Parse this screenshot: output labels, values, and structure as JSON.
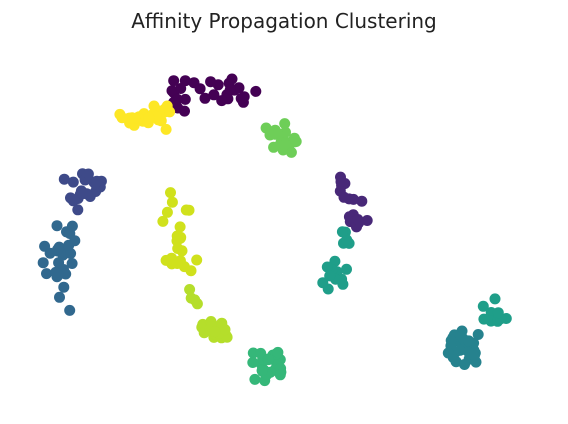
{
  "chart_data": {
    "type": "scatter",
    "title": "Affinity Propagation Clustering",
    "xlabel": "",
    "ylabel": "",
    "axes_visible": false,
    "grid": false,
    "legend": "none",
    "xlim": [
      -1.2,
      2.2
    ],
    "ylim": [
      -0.65,
      1.2
    ],
    "colormap": "viridis",
    "clusters": [
      {
        "id": 0,
        "color": "#440154",
        "points": [
          [
            -0.079,
            1.032
          ],
          [
            0.16,
            1.051
          ],
          [
            0.31,
            0.987
          ],
          [
            -0.208,
            0.93
          ],
          [
            -0.134,
            1.042
          ],
          [
            -0.207,
            0.981
          ],
          [
            -0.218,
            0.991
          ],
          [
            0.073,
            1.021
          ],
          [
            0.142,
            1.03
          ],
          [
            0.204,
            1.006
          ],
          [
            0.128,
            0.971
          ],
          [
            -0.041,
            1.001
          ],
          [
            -0.134,
            0.946
          ],
          [
            -0.181,
            0.902
          ],
          [
            -0.183,
            0.946
          ],
          [
            -0.163,
            1.002
          ],
          [
            0.134,
            0.949
          ],
          [
            0.046,
            0.97
          ],
          [
            0.175,
            0.994
          ],
          [
            0.025,
            1.037
          ],
          [
            0.232,
            0.931
          ],
          [
            -0.139,
            0.886
          ],
          [
            0.218,
            0.951
          ],
          [
            0.149,
            0.997
          ],
          [
            -0.207,
            1.042
          ],
          [
            0.095,
            0.94
          ],
          [
            -0.01,
            0.952
          ],
          [
            0.237,
            0.96
          ]
        ]
      },
      {
        "id": 1,
        "color": "#482878",
        "points": [
          [
            0.871,
            0.514
          ],
          [
            0.897,
            0.435
          ],
          [
            0.977,
            0.423
          ],
          [
            0.843,
            0.547
          ],
          [
            0.944,
            0.291
          ],
          [
            1.011,
            0.324
          ],
          [
            0.925,
            0.432
          ],
          [
            0.842,
            0.475
          ],
          [
            0.924,
            0.353
          ],
          [
            0.85,
            0.503
          ],
          [
            0.846,
            0.523
          ],
          [
            0.899,
            0.343
          ],
          [
            0.958,
            0.312
          ],
          [
            0.865,
            0.443
          ],
          [
            0.905,
            0.318
          ],
          [
            0.953,
            0.329
          ]
        ]
      },
      {
        "id": 2,
        "color": "#3e4a89",
        "points": [
          [
            -0.796,
            0.457
          ],
          [
            -0.71,
            0.521
          ],
          [
            -0.781,
            0.564
          ],
          [
            -0.733,
            0.447
          ],
          [
            -0.765,
            0.532
          ],
          [
            -0.699,
            0.473
          ],
          [
            -0.755,
            0.461
          ],
          [
            -0.744,
            0.563
          ],
          [
            -0.896,
            0.536
          ],
          [
            -0.788,
            0.476
          ],
          [
            -0.662,
            0.526
          ],
          [
            -0.839,
            0.425
          ],
          [
            -0.811,
            0.379
          ],
          [
            -0.839,
            0.521
          ],
          [
            -0.669,
            0.496
          ],
          [
            -0.701,
            0.512
          ],
          [
            -0.691,
            0.526
          ],
          [
            -0.857,
            0.44
          ],
          [
            -0.809,
            0.437
          ],
          [
            -0.781,
            0.462
          ]
        ]
      },
      {
        "id": 3,
        "color": "#31688e",
        "points": [
          [
            -0.901,
            0.157
          ],
          [
            -1.008,
            0.051
          ],
          [
            -0.932,
            0.107
          ],
          [
            -0.862,
            -0.138
          ],
          [
            -0.942,
            0.035
          ],
          [
            -0.901,
            0.072
          ],
          [
            -0.882,
            0.266
          ],
          [
            -0.939,
            0.167
          ],
          [
            -0.905,
            0.146
          ],
          [
            -0.861,
            0.257
          ],
          [
            -0.887,
            0.049
          ],
          [
            -0.847,
            0.103
          ],
          [
            -0.928,
            0.187
          ],
          [
            -0.856,
            0.154
          ],
          [
            -0.899,
            -0.019
          ],
          [
            -0.926,
            -0.071
          ],
          [
            -0.935,
            0.042
          ],
          [
            -0.985,
            0.156
          ],
          [
            -0.868,
            0.197
          ],
          [
            -0.83,
            0.22
          ],
          [
            -0.845,
            0.295
          ],
          [
            -0.95,
            0.057
          ],
          [
            -1.029,
            0.107
          ],
          [
            -0.938,
            0.175
          ],
          [
            -1.02,
            0.191
          ],
          [
            -0.942,
            0.297
          ]
        ]
      },
      {
        "id": 4,
        "color": "#26828e",
        "points": [
          [
            1.63,
            -0.304
          ],
          [
            1.551,
            -0.278
          ],
          [
            1.637,
            -0.336
          ],
          [
            1.629,
            -0.333
          ],
          [
            1.692,
            -0.357
          ],
          [
            1.608,
            -0.244
          ],
          [
            1.553,
            -0.38
          ],
          [
            1.653,
            -0.389
          ],
          [
            1.586,
            -0.296
          ],
          [
            1.571,
            -0.402
          ],
          [
            1.614,
            -0.282
          ],
          [
            1.624,
            -0.416
          ],
          [
            1.683,
            -0.343
          ],
          [
            1.71,
            -0.262
          ],
          [
            1.567,
            -0.353
          ],
          [
            1.61,
            -0.339
          ],
          [
            1.538,
            -0.32
          ],
          [
            1.681,
            -0.306
          ],
          [
            1.56,
            -0.264
          ],
          [
            1.595,
            -0.343
          ],
          [
            1.651,
            -0.295
          ],
          [
            1.696,
            -0.404
          ],
          [
            1.651,
            -0.354
          ],
          [
            1.54,
            -0.293
          ],
          [
            1.522,
            -0.357
          ],
          [
            1.686,
            -0.372
          ]
        ]
      },
      {
        "id": 5,
        "color": "#1f9e89",
        "points": [
          [
            0.874,
            0.264
          ],
          [
            0.862,
            0.207
          ],
          [
            0.897,
            0.206
          ],
          [
            0.798,
            0.058
          ],
          [
            0.85,
            0.022
          ],
          [
            0.822,
            0.06
          ],
          [
            0.766,
            -0.028
          ],
          [
            0.882,
            0.224
          ],
          [
            0.808,
            0.114
          ],
          [
            0.881,
            0.073
          ],
          [
            0.858,
            -0.004
          ],
          [
            0.79,
            0.071
          ],
          [
            0.76,
            0.085
          ],
          [
            0.812,
            0.022
          ],
          [
            0.732,
            0.004
          ],
          [
            0.855,
            0.266
          ],
          [
            0.775,
            0.039
          ],
          [
            1.742,
            -0.117
          ],
          [
            1.816,
            -0.079
          ],
          [
            1.887,
            -0.18
          ],
          [
            1.792,
            -0.149
          ],
          [
            1.791,
            -0.193
          ],
          [
            1.832,
            -0.194
          ],
          [
            1.852,
            -0.181
          ],
          [
            1.746,
            -0.183
          ],
          [
            1.837,
            -0.15
          ]
        ]
      },
      {
        "id": 6,
        "color": "#35b779",
        "points": [
          [
            0.304,
            -0.493
          ],
          [
            0.417,
            -0.368
          ],
          [
            0.38,
            -0.389
          ],
          [
            0.359,
            -0.443
          ],
          [
            0.294,
            -0.357
          ],
          [
            0.447,
            -0.387
          ],
          [
            0.428,
            -0.446
          ],
          [
            0.345,
            -0.415
          ],
          [
            0.468,
            -0.455
          ],
          [
            0.353,
            -0.452
          ],
          [
            0.353,
            -0.39
          ],
          [
            0.464,
            -0.391
          ],
          [
            0.366,
            -0.499
          ],
          [
            0.341,
            -0.359
          ],
          [
            0.388,
            -0.389
          ],
          [
            0.442,
            -0.418
          ],
          [
            0.439,
            -0.361
          ],
          [
            0.35,
            -0.446
          ],
          [
            0.402,
            -0.456
          ],
          [
            0.381,
            -0.467
          ],
          [
            0.466,
            -0.436
          ],
          [
            0.464,
            -0.469
          ],
          [
            0.291,
            -0.406
          ],
          [
            0.449,
            -0.354
          ],
          [
            0.39,
            -0.391
          ],
          [
            0.35,
            -0.448
          ]
        ]
      },
      {
        "id": 7,
        "color": "#6ece58",
        "points": [
          [
            0.375,
            0.799
          ],
          [
            0.488,
            0.737
          ],
          [
            0.517,
            0.707
          ],
          [
            0.432,
            0.788
          ],
          [
            0.555,
            0.728
          ],
          [
            0.461,
            0.768
          ],
          [
            0.482,
            0.686
          ],
          [
            0.492,
            0.822
          ],
          [
            0.468,
            0.724
          ],
          [
            0.553,
            0.747
          ],
          [
            0.564,
            0.73
          ],
          [
            0.422,
            0.7
          ],
          [
            0.497,
            0.777
          ],
          [
            0.432,
            0.767
          ],
          [
            0.399,
            0.763
          ],
          [
            0.534,
            0.674
          ],
          [
            0.492,
            0.714
          ],
          [
            0.448,
            0.767
          ]
        ]
      },
      {
        "id": 8,
        "color": "#b5de2b",
        "points": [
          [
            -0.024,
            -0.21
          ],
          [
            0.046,
            -0.277
          ],
          [
            0.094,
            -0.279
          ],
          [
            0.057,
            -0.266
          ],
          [
            0.054,
            -0.247
          ],
          [
            0.123,
            -0.267
          ],
          [
            0.052,
            -0.259
          ],
          [
            0.08,
            -0.248
          ],
          [
            0.096,
            -0.218
          ],
          [
            0.129,
            -0.276
          ],
          [
            0.028,
            -0.245
          ],
          [
            0.091,
            -0.213
          ],
          [
            0.078,
            -0.255
          ],
          [
            -0.03,
            -0.225
          ],
          [
            0.028,
            -0.195
          ],
          [
            -0.015,
            -0.253
          ],
          [
            0.03,
            -0.202
          ],
          [
            -0.058,
            -0.104
          ],
          [
            -0.097,
            -0.075
          ],
          [
            -0.107,
            -0.031
          ],
          [
            0.023,
            -0.234
          ],
          [
            0.096,
            -0.204
          ],
          [
            0.031,
            -0.222
          ],
          [
            -0.075,
            -0.084
          ],
          [
            0.116,
            -0.237
          ],
          [
            0.052,
            -0.247
          ]
        ]
      },
      {
        "id": 9,
        "color": "#d0e11c",
        "points": [
          [
            -0.247,
            0.366
          ],
          [
            -0.215,
            0.418
          ],
          [
            -0.163,
            0.237
          ],
          [
            -0.219,
            0.101
          ],
          [
            -0.165,
            0.117
          ],
          [
            -0.22,
            0.13
          ],
          [
            -0.165,
            0.233
          ],
          [
            -0.255,
            0.119
          ],
          [
            -0.167,
            0.291
          ],
          [
            -0.062,
            0.121
          ],
          [
            -0.155,
            0.168
          ],
          [
            -0.14,
            0.087
          ],
          [
            -0.185,
            0.244
          ],
          [
            -0.185,
            0.103
          ],
          [
            -0.111,
            0.377
          ],
          [
            -0.128,
            0.378
          ],
          [
            -0.186,
            0.219
          ],
          [
            -0.098,
            0.066
          ],
          [
            -0.227,
            0.467
          ],
          [
            -0.182,
            0.18
          ],
          [
            -0.275,
            0.319
          ]
        ]
      },
      {
        "id": 10,
        "color": "#fde725",
        "points": [
          [
            -0.469,
            0.852
          ],
          [
            -0.486,
            0.85
          ],
          [
            -0.435,
            0.851
          ],
          [
            -0.331,
            0.912
          ],
          [
            -0.322,
            0.883
          ],
          [
            -0.456,
            0.813
          ],
          [
            -0.546,
            0.869
          ],
          [
            -0.401,
            0.834
          ],
          [
            -0.312,
            0.851
          ],
          [
            -0.285,
            0.836
          ],
          [
            -0.264,
            0.896
          ],
          [
            -0.394,
            0.873
          ],
          [
            -0.341,
            0.867
          ],
          [
            -0.313,
            0.89
          ],
          [
            -0.485,
            0.825
          ],
          [
            -0.532,
            0.852
          ],
          [
            -0.425,
            0.857
          ],
          [
            -0.255,
            0.792
          ],
          [
            -0.304,
            0.841
          ],
          [
            -0.428,
            0.848
          ],
          [
            -0.266,
            0.881
          ],
          [
            -0.317,
            0.859
          ],
          [
            -0.453,
            0.848
          ],
          [
            -0.367,
            0.836
          ],
          [
            -0.367,
            0.826
          ],
          [
            -0.248,
            0.912
          ],
          [
            -0.233,
            0.882
          ],
          [
            -0.364,
            0.852
          ]
        ]
      }
    ]
  }
}
